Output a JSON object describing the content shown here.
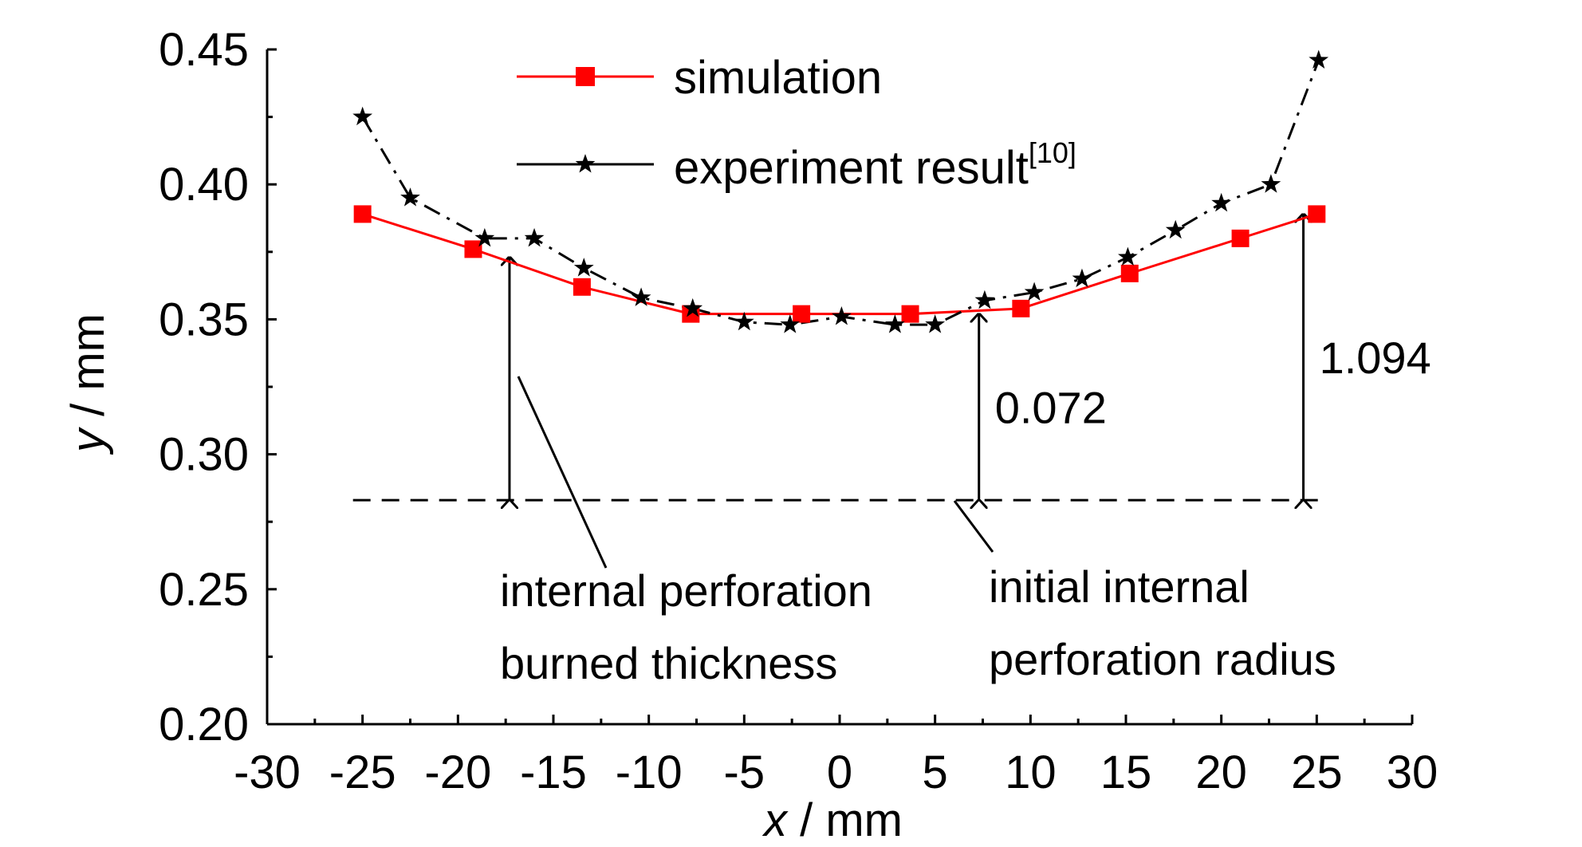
{
  "chart_data": {
    "type": "line",
    "xlabel_var": "x",
    "xlabel_unit": " / mm",
    "ylabel_var": "y",
    "ylabel_unit": " / mm",
    "xlim": [
      -30,
      30
    ],
    "ylim": [
      0.2,
      0.45
    ],
    "xticks": [
      -30,
      -25,
      -20,
      -15,
      -10,
      -5,
      0,
      5,
      10,
      15,
      20,
      25,
      30
    ],
    "xtick_labels": [
      "-30",
      "-25",
      "-20",
      "-15",
      "-10",
      "-5",
      "0",
      "5",
      "10",
      "15",
      "20",
      "25",
      "30"
    ],
    "yticks": [
      0.2,
      0.25,
      0.3,
      0.35,
      0.4,
      0.45
    ],
    "ytick_labels": [
      "0.20",
      "0.25",
      "0.30",
      "0.35",
      "0.40",
      "0.45"
    ],
    "grid": false,
    "legend_position": "top-center",
    "series": [
      {
        "name": "simulation",
        "color": "#ff0000",
        "marker": "square",
        "line_style": "solid",
        "x": [
          -25,
          -19.2,
          -13.5,
          -7.8,
          -2,
          3.7,
          9.5,
          15.2,
          21,
          25
        ],
        "y": [
          0.389,
          0.376,
          0.362,
          0.352,
          0.352,
          0.352,
          0.354,
          0.367,
          0.38,
          0.389
        ]
      },
      {
        "name": "experiment result",
        "name_superscript": "[10]",
        "color": "#000000",
        "marker": "star",
        "line_style": "dashed",
        "x": [
          -25,
          -22.5,
          -18.6,
          -16,
          -13.4,
          -10.4,
          -7.7,
          -5,
          -2.6,
          0.1,
          2.9,
          5,
          7.6,
          10.2,
          12.7,
          15.1,
          17.6,
          20,
          22.6,
          25.1
        ],
        "y": [
          0.425,
          0.395,
          0.38,
          0.38,
          0.369,
          0.358,
          0.354,
          0.349,
          0.348,
          0.351,
          0.348,
          0.348,
          0.357,
          0.36,
          0.365,
          0.373,
          0.383,
          0.393,
          0.4,
          0.446
        ]
      }
    ],
    "reference_line": {
      "y": 0.283,
      "x_range": [
        -25.5,
        25.5
      ],
      "style": "dashed"
    },
    "dimension_arrows": [
      {
        "x": -17.3,
        "y_from": 0.283,
        "y_to": 0.373,
        "label": ""
      },
      {
        "x": 7.3,
        "y_from": 0.283,
        "y_to": 0.352,
        "label": "0.072"
      },
      {
        "x": 24.3,
        "y_from": 0.283,
        "y_to": 0.389,
        "label": "1.094"
      }
    ],
    "annotations": [
      {
        "lines": [
          "internal perforation",
          "burned thickness"
        ]
      },
      {
        "lines": [
          "initial internal",
          "perforation radius"
        ]
      }
    ]
  }
}
